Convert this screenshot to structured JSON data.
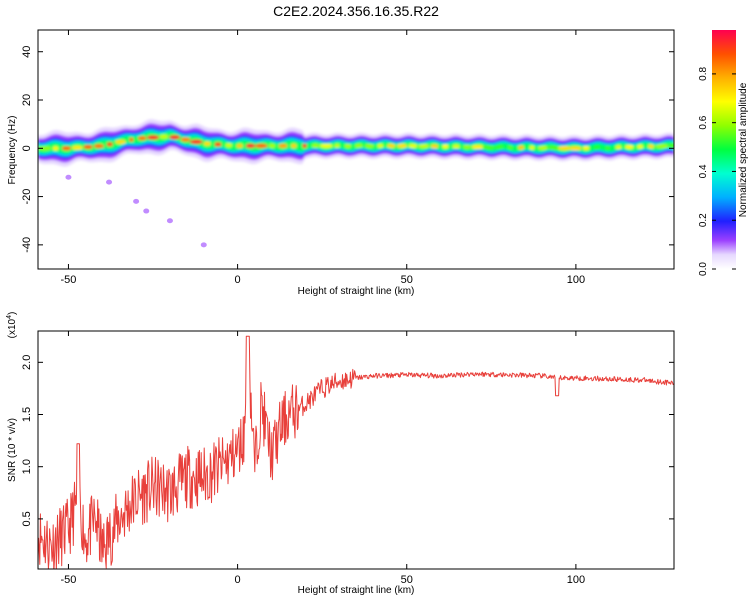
{
  "title": "C2E2.2024.356.16.35.R22",
  "chart_data": [
    {
      "type": "heatmap",
      "xlabel": "Height of straight line (km)",
      "ylabel": "Frequency (Hz)",
      "xlim": [
        -59,
        129
      ],
      "ylim": [
        -50,
        49
      ],
      "xticks": [
        -50,
        0,
        50,
        100
      ],
      "yticks": [
        40,
        20,
        0,
        -20,
        -40
      ],
      "colorbar": {
        "label": "Normalized spectral amplitude",
        "min": 0.0,
        "max": 0.98,
        "ticks": [
          0.0,
          0.2,
          0.4,
          0.6,
          0.8
        ],
        "tick_labels": [
          "0.0",
          "0.2",
          "0.4",
          "0.6",
          "0.8"
        ]
      },
      "ridge": {
        "x": [
          -59,
          -50,
          -40,
          -30,
          -20,
          -10,
          0,
          10,
          20,
          50,
          100,
          129
        ],
        "y": [
          0,
          0,
          1,
          4,
          5,
          2,
          1,
          1,
          1,
          1,
          0,
          1
        ]
      },
      "scatter_points": [
        {
          "x": -50,
          "y": -12
        },
        {
          "x": -38,
          "y": -14
        },
        {
          "x": -30,
          "y": -22
        },
        {
          "x": -27,
          "y": -26
        },
        {
          "x": -20,
          "y": -30
        },
        {
          "x": -10,
          "y": -40
        }
      ]
    },
    {
      "type": "line",
      "xlabel": "Height of straight line (km)",
      "ylabel": "SNR (10 * v/v)",
      "y_multiplier": "(x10",
      "y_multiplier_exp": "4",
      "y_multiplier_close": ")",
      "xlim": [
        -59,
        129
      ],
      "ylim": [
        0.02,
        2.3
      ],
      "xticks": [
        -50,
        0,
        50,
        100
      ],
      "yticks": [
        0.5,
        1.0,
        1.5,
        2.0
      ],
      "ytick_labels": [
        "0.5",
        "1.0",
        "1.5",
        "2.0"
      ],
      "series": [
        {
          "color": "#e8403b",
          "x": [
            -59,
            -55,
            -50,
            -47,
            -45,
            -42,
            -40,
            -35,
            -30,
            -25,
            -20,
            -15,
            -10,
            -5,
            0,
            2,
            3,
            5,
            7,
            10,
            13,
            15,
            20,
            25,
            30,
            35,
            40,
            50,
            60,
            70,
            80,
            90,
            95,
            100,
            110,
            120,
            129
          ],
          "y": [
            0.35,
            0.25,
            0.4,
            0.7,
            0.3,
            0.5,
            0.2,
            0.5,
            0.7,
            0.8,
            0.75,
            0.9,
            0.9,
            1.0,
            1.15,
            1.3,
            2.2,
            1.0,
            1.6,
            1.1,
            1.4,
            1.5,
            1.6,
            1.75,
            1.82,
            1.85,
            1.87,
            1.88,
            1.87,
            1.89,
            1.88,
            1.87,
            1.85,
            1.85,
            1.84,
            1.83,
            1.8
          ]
        }
      ]
    }
  ],
  "colors": {
    "line": "#e8403b",
    "background": "#ffffff"
  }
}
